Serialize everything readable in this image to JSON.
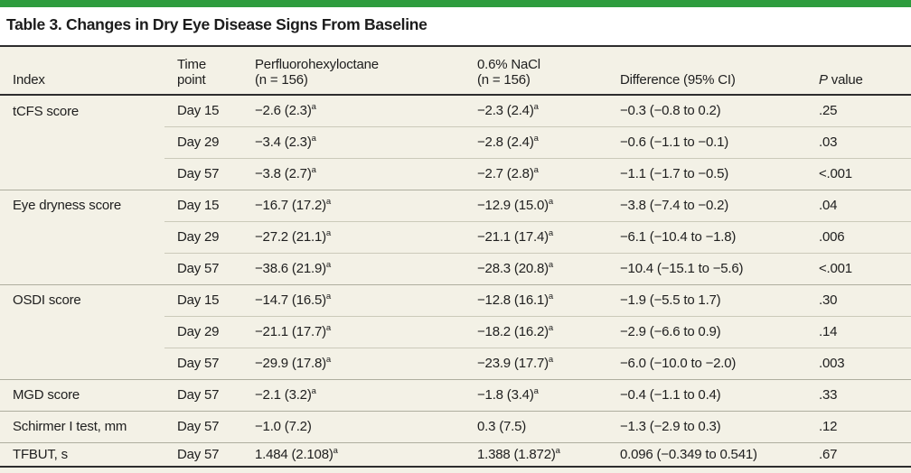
{
  "title": "Table 3. Changes in Dry Eye Disease Signs From Baseline",
  "colors": {
    "accent_green": "#2e9c3e",
    "table_background": "#f3f1e6",
    "rule_dark": "#2d2d2d",
    "rule_group": "#aeae9f",
    "rule_inner": "#cbcaba",
    "text": "#202020"
  },
  "table": {
    "header": {
      "index": "Index",
      "time_line1": "Time",
      "time_line2": "point",
      "pfho_line1": "Perfluorohexyloctane",
      "pfho_line2": "(n = 156)",
      "nacl_line1": "0.6% NaCl",
      "nacl_line2": "(n = 156)",
      "difference": "Difference (95% CI)",
      "p_italic": "P",
      "p_rest": " value"
    },
    "footnote_marker": "a",
    "rows": [
      {
        "index": "tCFS score",
        "time": "Day 15",
        "pfho": "−2.6 (2.3)^a",
        "nacl": "−2.3 (2.4)^a",
        "diff": "−0.3 (−0.8 to 0.2)",
        "p": ".25",
        "group_start": true
      },
      {
        "index": "",
        "time": "Day 29",
        "pfho": "−3.4 (2.3)^a",
        "nacl": "−2.8 (2.4)^a",
        "diff": "−0.6 (−1.1 to −0.1)",
        "p": ".03",
        "group_start": false
      },
      {
        "index": "",
        "time": "Day 57",
        "pfho": "−3.8 (2.7)^a",
        "nacl": "−2.7 (2.8)^a",
        "diff": "−1.1 (−1.7 to −0.5)",
        "p": "<.001",
        "group_start": false
      },
      {
        "index": "Eye dryness score",
        "time": "Day 15",
        "pfho": "−16.7 (17.2)^a",
        "nacl": "−12.9 (15.0)^a",
        "diff": "−3.8 (−7.4 to −0.2)",
        "p": ".04",
        "group_start": true
      },
      {
        "index": "",
        "time": "Day 29",
        "pfho": "−27.2 (21.1)^a",
        "nacl": "−21.1 (17.4)^a",
        "diff": "−6.1 (−10.4 to −1.8)",
        "p": ".006",
        "group_start": false
      },
      {
        "index": "",
        "time": "Day 57",
        "pfho": "−38.6 (21.9)^a",
        "nacl": "−28.3 (20.8)^a",
        "diff": "−10.4 (−15.1 to −5.6)",
        "p": "<.001",
        "group_start": false
      },
      {
        "index": "OSDI score",
        "time": "Day 15",
        "pfho": "−14.7 (16.5)^a",
        "nacl": "−12.8 (16.1)^a",
        "diff": "−1.9 (−5.5 to 1.7)",
        "p": ".30",
        "group_start": true
      },
      {
        "index": "",
        "time": "Day 29",
        "pfho": "−21.1 (17.7)^a",
        "nacl": "−18.2 (16.2)^a",
        "diff": "−2.9 (−6.6 to 0.9)",
        "p": ".14",
        "group_start": false
      },
      {
        "index": "",
        "time": "Day 57",
        "pfho": "−29.9 (17.8)^a",
        "nacl": "−23.9 (17.7)^a",
        "diff": "−6.0 (−10.0 to −2.0)",
        "p": ".003",
        "group_start": false
      },
      {
        "index": "MGD score",
        "time": "Day 57",
        "pfho": "−2.1 (3.2)^a",
        "nacl": "−1.8 (3.4)^a",
        "diff": "−0.4 (−1.1 to 0.4)",
        "p": ".33",
        "group_start": true
      },
      {
        "index": "Schirmer I test, mm",
        "time": "Day 57",
        "pfho": "−1.0 (7.2)",
        "nacl": "0.3 (7.5)",
        "diff": "−1.3 (−2.9 to 0.3)",
        "p": ".12",
        "group_start": true
      },
      {
        "index": "TFBUT, s",
        "time": "Day 57",
        "pfho": "1.484 (2.108)^a",
        "nacl": "1.388 (1.872)^a",
        "diff": "0.096 (−0.349 to 0.541)",
        "p": ".67",
        "group_start": true
      }
    ]
  }
}
